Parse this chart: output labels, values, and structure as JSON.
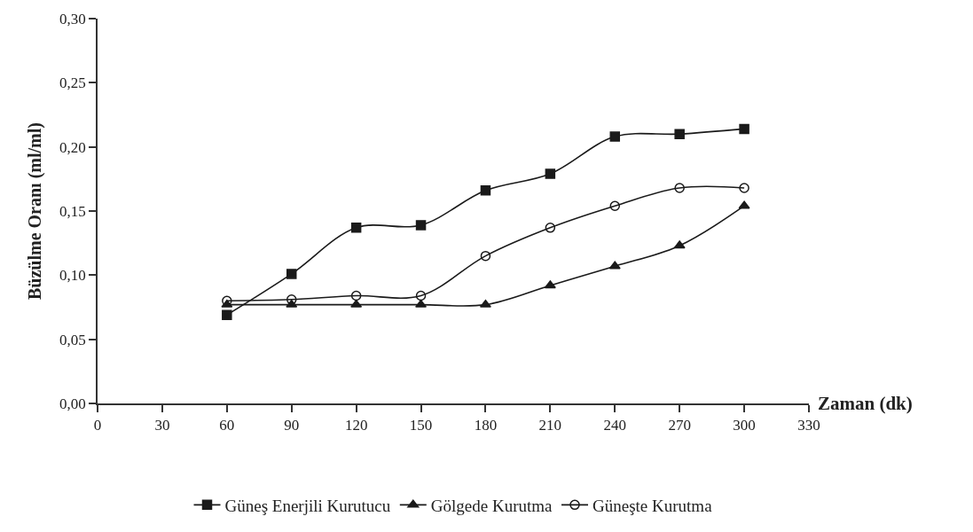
{
  "chart_data": {
    "type": "line",
    "xlabel": "Zaman (dk)",
    "ylabel": "Büzülme Oranı (ml/ml)",
    "x": [
      60,
      90,
      120,
      150,
      180,
      210,
      240,
      270,
      300
    ],
    "series": [
      {
        "name": "Güneş Enerjili Kurutucu",
        "color": "#1a1a1a",
        "marker": "square",
        "values": [
          0.069,
          0.101,
          0.137,
          0.139,
          0.166,
          0.179,
          0.208,
          0.21,
          0.214
        ]
      },
      {
        "name": "Gölgede Kurutma",
        "color": "#1a1a1a",
        "marker": "triangle",
        "values": [
          0.077,
          0.077,
          0.077,
          0.077,
          0.077,
          0.092,
          0.107,
          0.123,
          0.154
        ]
      },
      {
        "name": "Güneşte Kurutma",
        "color": "#1a1a1a",
        "marker": "circle",
        "values": [
          0.08,
          0.081,
          0.084,
          0.084,
          0.115,
          0.137,
          0.154,
          0.168,
          0.168
        ]
      }
    ],
    "xlim": [
      0,
      330
    ],
    "xticks": [
      0,
      30,
      60,
      90,
      120,
      150,
      180,
      210,
      240,
      270,
      300,
      330
    ],
    "ylim": [
      0,
      0.3
    ],
    "yticks": [
      {
        "value": 0,
        "label": "0,00"
      },
      {
        "value": 0.05,
        "label": "0,05"
      },
      {
        "value": 0.1,
        "label": "0,10"
      },
      {
        "value": 0.15,
        "label": "0,15"
      },
      {
        "value": 0.2,
        "label": "0,20"
      },
      {
        "value": 0.25,
        "label": "0,25"
      },
      {
        "value": 0.3,
        "label": "0,30"
      }
    ],
    "legend": "bottom",
    "line_style": "solid"
  }
}
